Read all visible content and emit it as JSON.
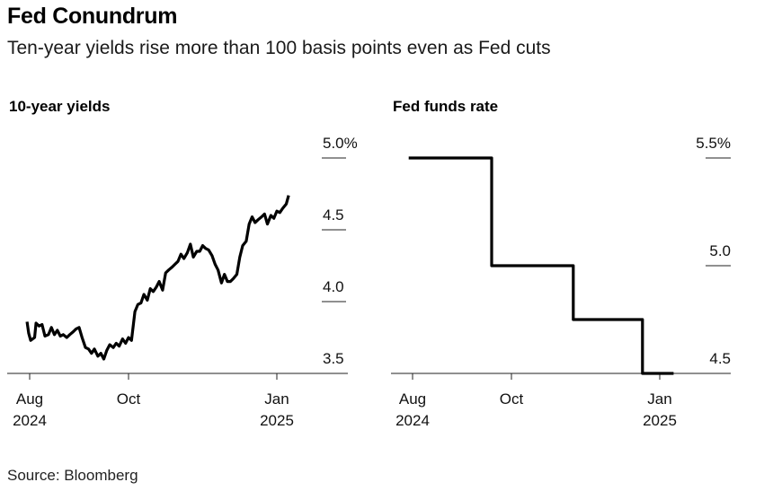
{
  "header": {
    "title": "Fed Conundrum",
    "subtitle": "Ten-year yields rise more than 100 basis points even as Fed cuts"
  },
  "source": "Source: Bloomberg",
  "chart_data": [
    {
      "type": "line",
      "title": "10-year yields",
      "xlabel": "",
      "ylabel": "",
      "ylim": [
        3.5,
        5.0
      ],
      "y_ticks": [
        {
          "value": 5.0,
          "label": "5.0%"
        },
        {
          "value": 4.5,
          "label": "4.5"
        },
        {
          "value": 4.0,
          "label": "4.0"
        },
        {
          "value": 3.5,
          "label": "3.5"
        }
      ],
      "x_ticks": [
        {
          "t": 0.0,
          "line1": "Aug",
          "line2": "2024"
        },
        {
          "t": 2.0,
          "line1": "Oct",
          "line2": ""
        },
        {
          "t": 5.0,
          "line1": "Jan",
          "line2": "2025"
        }
      ],
      "series": [
        {
          "name": "10-year yield",
          "points": [
            [
              -0.05,
              3.85
            ],
            [
              -0.02,
              3.78
            ],
            [
              0.02,
              3.73
            ],
            [
              0.1,
              3.75
            ],
            [
              0.13,
              3.85
            ],
            [
              0.19,
              3.83
            ],
            [
              0.25,
              3.84
            ],
            [
              0.31,
              3.76
            ],
            [
              0.38,
              3.77
            ],
            [
              0.44,
              3.82
            ],
            [
              0.5,
              3.77
            ],
            [
              0.56,
              3.8
            ],
            [
              0.62,
              3.76
            ],
            [
              0.68,
              3.77
            ],
            [
              0.75,
              3.75
            ],
            [
              0.81,
              3.77
            ],
            [
              0.88,
              3.79
            ],
            [
              0.94,
              3.81
            ],
            [
              1.0,
              3.82
            ],
            [
              1.06,
              3.75
            ],
            [
              1.13,
              3.68
            ],
            [
              1.19,
              3.67
            ],
            [
              1.25,
              3.64
            ],
            [
              1.31,
              3.67
            ],
            [
              1.38,
              3.62
            ],
            [
              1.44,
              3.64
            ],
            [
              1.5,
              3.6
            ],
            [
              1.56,
              3.66
            ],
            [
              1.62,
              3.7
            ],
            [
              1.69,
              3.68
            ],
            [
              1.75,
              3.71
            ],
            [
              1.81,
              3.69
            ],
            [
              1.88,
              3.74
            ],
            [
              1.94,
              3.71
            ],
            [
              2.0,
              3.75
            ],
            [
              2.06,
              3.73
            ],
            [
              2.13,
              3.93
            ],
            [
              2.19,
              3.98
            ],
            [
              2.25,
              3.99
            ],
            [
              2.31,
              4.05
            ],
            [
              2.38,
              4.01
            ],
            [
              2.44,
              4.09
            ],
            [
              2.5,
              4.07
            ],
            [
              2.56,
              4.1
            ],
            [
              2.62,
              4.14
            ],
            [
              2.69,
              4.08
            ],
            [
              2.75,
              4.2
            ],
            [
              2.81,
              4.22
            ],
            [
              2.88,
              4.24
            ],
            [
              2.94,
              4.26
            ],
            [
              3.0,
              4.28
            ],
            [
              3.06,
              4.33
            ],
            [
              3.12,
              4.3
            ],
            [
              3.19,
              4.34
            ],
            [
              3.25,
              4.4
            ],
            [
              3.31,
              4.31
            ],
            [
              3.38,
              4.35
            ],
            [
              3.44,
              4.35
            ],
            [
              3.5,
              4.39
            ],
            [
              3.56,
              4.37
            ],
            [
              3.62,
              4.36
            ],
            [
              3.69,
              4.32
            ],
            [
              3.75,
              4.26
            ],
            [
              3.81,
              4.22
            ],
            [
              3.88,
              4.13
            ],
            [
              3.94,
              4.19
            ],
            [
              4.0,
              4.14
            ],
            [
              4.06,
              4.14
            ],
            [
              4.12,
              4.16
            ],
            [
              4.19,
              4.19
            ],
            [
              4.25,
              4.31
            ],
            [
              4.31,
              4.39
            ],
            [
              4.38,
              4.42
            ],
            [
              4.44,
              4.54
            ],
            [
              4.5,
              4.59
            ],
            [
              4.56,
              4.55
            ],
            [
              4.62,
              4.57
            ],
            [
              4.69,
              4.59
            ],
            [
              4.75,
              4.61
            ],
            [
              4.81,
              4.54
            ],
            [
              4.88,
              4.6
            ],
            [
              4.94,
              4.58
            ],
            [
              5.0,
              4.63
            ],
            [
              5.06,
              4.62
            ],
            [
              5.12,
              4.65
            ],
            [
              5.19,
              4.68
            ],
            [
              5.23,
              4.73
            ]
          ]
        }
      ]
    },
    {
      "type": "line",
      "title": "Fed funds rate",
      "xlabel": "",
      "ylabel": "",
      "ylim": [
        4.5,
        5.5
      ],
      "y_ticks": [
        {
          "value": 5.5,
          "label": "5.5%"
        },
        {
          "value": 5.0,
          "label": "5.0"
        },
        {
          "value": 4.5,
          "label": "4.5"
        }
      ],
      "x_ticks": [
        {
          "t": 0.0,
          "line1": "Aug",
          "line2": "2024"
        },
        {
          "t": 2.0,
          "line1": "Oct",
          "line2": ""
        },
        {
          "t": 5.0,
          "line1": "Jan",
          "line2": "2025"
        }
      ],
      "series": [
        {
          "name": "Fed funds rate",
          "points": [
            [
              -0.05,
              5.5
            ],
            [
              1.6,
              5.5
            ],
            [
              1.6,
              5.0
            ],
            [
              3.25,
              5.0
            ],
            [
              3.25,
              4.75
            ],
            [
              4.65,
              4.75
            ],
            [
              4.65,
              4.5
            ],
            [
              5.25,
              4.5
            ]
          ]
        }
      ]
    }
  ]
}
